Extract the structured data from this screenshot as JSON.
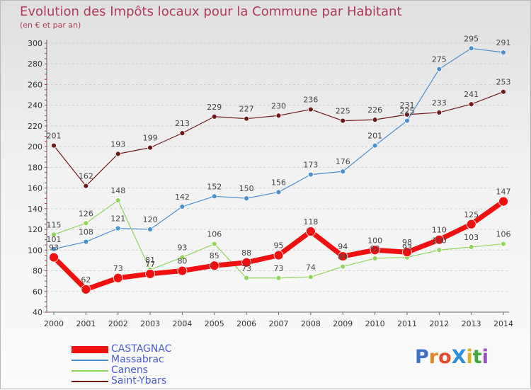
{
  "title": "Evolution des Impôts locaux pour la Commune par Habitant",
  "subtitle": "(en € et par an)",
  "logo": {
    "text": "ProXiti",
    "colors": [
      "#3b73c8",
      "#e0872a",
      "#e24a2a",
      "#2f8fd8",
      "#d8b21e",
      "#3fa83f",
      "#9a4fc9"
    ]
  },
  "chart_data": {
    "type": "line",
    "x": [
      2000,
      2001,
      2002,
      2003,
      2004,
      2005,
      2006,
      2007,
      2008,
      2009,
      2010,
      2011,
      2012,
      2013,
      2014
    ],
    "ylim": [
      40,
      300
    ],
    "yticks": [
      40,
      60,
      80,
      100,
      120,
      140,
      160,
      180,
      200,
      220,
      240,
      260,
      280,
      300
    ],
    "grid": "horizontal",
    "legend_position": "bottom-left",
    "series": [
      {
        "name": "Saint-Ybars",
        "color": "#6e1a1a",
        "width": 1.2,
        "marker": 3.5,
        "values": [
          201,
          162,
          193,
          199,
          213,
          229,
          227,
          230,
          236,
          225,
          226,
          231,
          233,
          241,
          253
        ],
        "labels": [
          "201",
          "162",
          "193",
          "199",
          "213",
          "229",
          "227",
          "230",
          "236",
          "225",
          "226",
          "231",
          "233",
          "241",
          "253"
        ]
      },
      {
        "name": "Massabrac",
        "color": "#4a8fd0",
        "width": 1.2,
        "marker": 3.5,
        "values": [
          101,
          108,
          121,
          120,
          142,
          152,
          150,
          156,
          173,
          176,
          201,
          225,
          275,
          295,
          291
        ],
        "labels": [
          "101",
          "108",
          "121",
          "120",
          "142",
          "152",
          "150",
          "156",
          "173",
          "176",
          "201",
          "225",
          "275",
          "295",
          "291"
        ]
      },
      {
        "name": "Canens",
        "color": "#8fd65a",
        "width": 1.2,
        "marker": 3.5,
        "values": [
          115,
          126,
          148,
          81,
          93,
          106,
          73,
          73,
          74,
          84,
          92,
          93,
          100,
          103,
          106
        ],
        "labels": [
          "115",
          "126",
          "148",
          "81",
          "93",
          "106",
          "73",
          "73",
          "74",
          "84",
          "92",
          "93",
          "100",
          "103",
          "106"
        ]
      },
      {
        "name": "CASTAGNAC",
        "color": "#f01010",
        "width": 7,
        "marker": 6.5,
        "values": [
          93,
          62,
          73,
          77,
          80,
          85,
          88,
          95,
          118,
          94,
          100,
          98,
          110,
          125,
          147
        ],
        "labels": [
          "93",
          "62",
          "73",
          "77",
          "80",
          "85",
          "88",
          "95",
          "118",
          "94",
          "100",
          "98",
          "110",
          "125",
          "147"
        ]
      }
    ],
    "legend_order": [
      "CASTAGNAC",
      "Massabrac",
      "Canens",
      "Saint-Ybars"
    ]
  }
}
